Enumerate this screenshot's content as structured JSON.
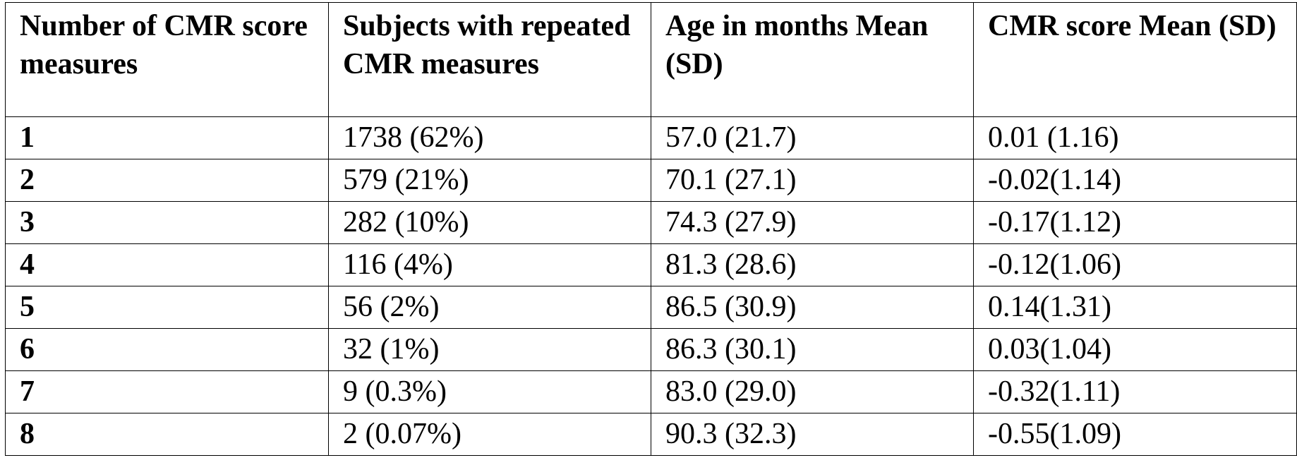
{
  "table": {
    "headers": [
      "Number of CMR score measures",
      "Subjects with repeated CMR measures",
      "Age in months Mean (SD)",
      "CMR score Mean (SD)"
    ],
    "rows": [
      [
        "1",
        "1738 (62%)",
        "57.0 (21.7)",
        "0.01 (1.16)"
      ],
      [
        "2",
        "579 (21%)",
        "70.1 (27.1)",
        "-0.02(1.14)"
      ],
      [
        "3",
        "282 (10%)",
        "74.3 (27.9)",
        "-0.17(1.12)"
      ],
      [
        "4",
        "116 (4%)",
        "81.3 (28.6)",
        "-0.12(1.06)"
      ],
      [
        "5",
        "56 (2%)",
        "86.5 (30.9)",
        "0.14(1.31)"
      ],
      [
        "6",
        "32 (1%)",
        "86.3 (30.1)",
        "0.03(1.04)"
      ],
      [
        "7",
        "9 (0.3%)",
        "83.0 (29.0)",
        "-0.32(1.11)"
      ],
      [
        "8",
        "2 (0.07%)",
        "90.3 (32.3)",
        "-0.55(1.09)"
      ]
    ]
  }
}
